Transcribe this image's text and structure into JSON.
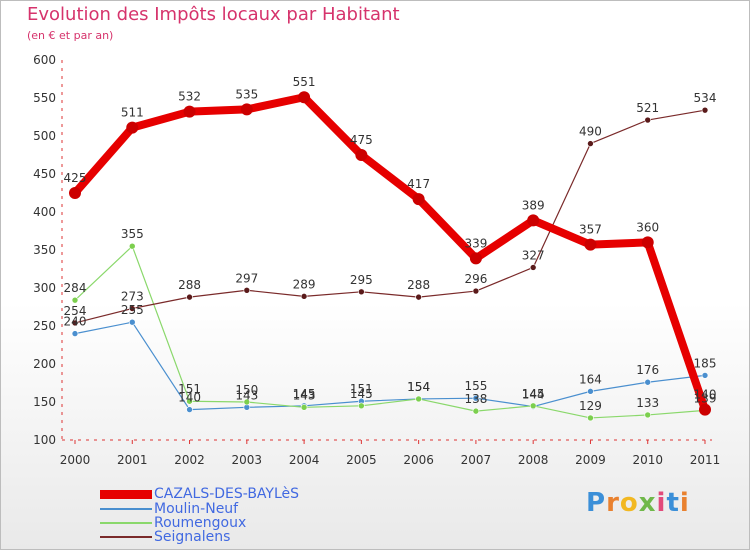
{
  "header": {
    "title": "Evolution des Impôts locaux par Habitant",
    "subtitle": "(en € et par an)"
  },
  "logo": {
    "letters": [
      "P",
      "r",
      "o",
      "x",
      "i",
      "t",
      "i"
    ]
  },
  "chart_data": {
    "type": "line",
    "title": "Evolution des Impôts locaux par Habitant",
    "subtitle": "(en € et par an)",
    "xlabel": "",
    "ylabel": "",
    "x": [
      "2000",
      "2001",
      "2002",
      "2003",
      "2004",
      "2005",
      "2006",
      "2007",
      "2008",
      "2009",
      "2010",
      "2011"
    ],
    "ylim": [
      100,
      600
    ],
    "yticks": [
      100,
      150,
      200,
      250,
      300,
      350,
      400,
      450,
      500,
      550,
      600
    ],
    "grid": false,
    "legend_position": "bottom-left",
    "series": [
      {
        "name": "CAZALS-DES-BAYLèS",
        "color": "#e60000",
        "dot": "#cc0000",
        "values": [
          425,
          511,
          532,
          535,
          551,
          475,
          417,
          339,
          389,
          357,
          360,
          140
        ]
      },
      {
        "name": "Moulin-Neuf",
        "color": "#4a8fcf",
        "dot": "#4a8fcf",
        "values": [
          240,
          255,
          140,
          143,
          145,
          151,
          154,
          155,
          144,
          164,
          176,
          185
        ]
      },
      {
        "name": "Roumengoux",
        "color": "#8ad86b",
        "dot": "#7ccf4e",
        "values": [
          284,
          355,
          151,
          150,
          143,
          145,
          154,
          138,
          145,
          129,
          133,
          139
        ]
      },
      {
        "name": "Seignalens",
        "color": "#7a2a2a",
        "dot": "#5a1a1a",
        "values": [
          254,
          273,
          288,
          297,
          289,
          295,
          288,
          296,
          327,
          490,
          521,
          534
        ]
      }
    ]
  }
}
